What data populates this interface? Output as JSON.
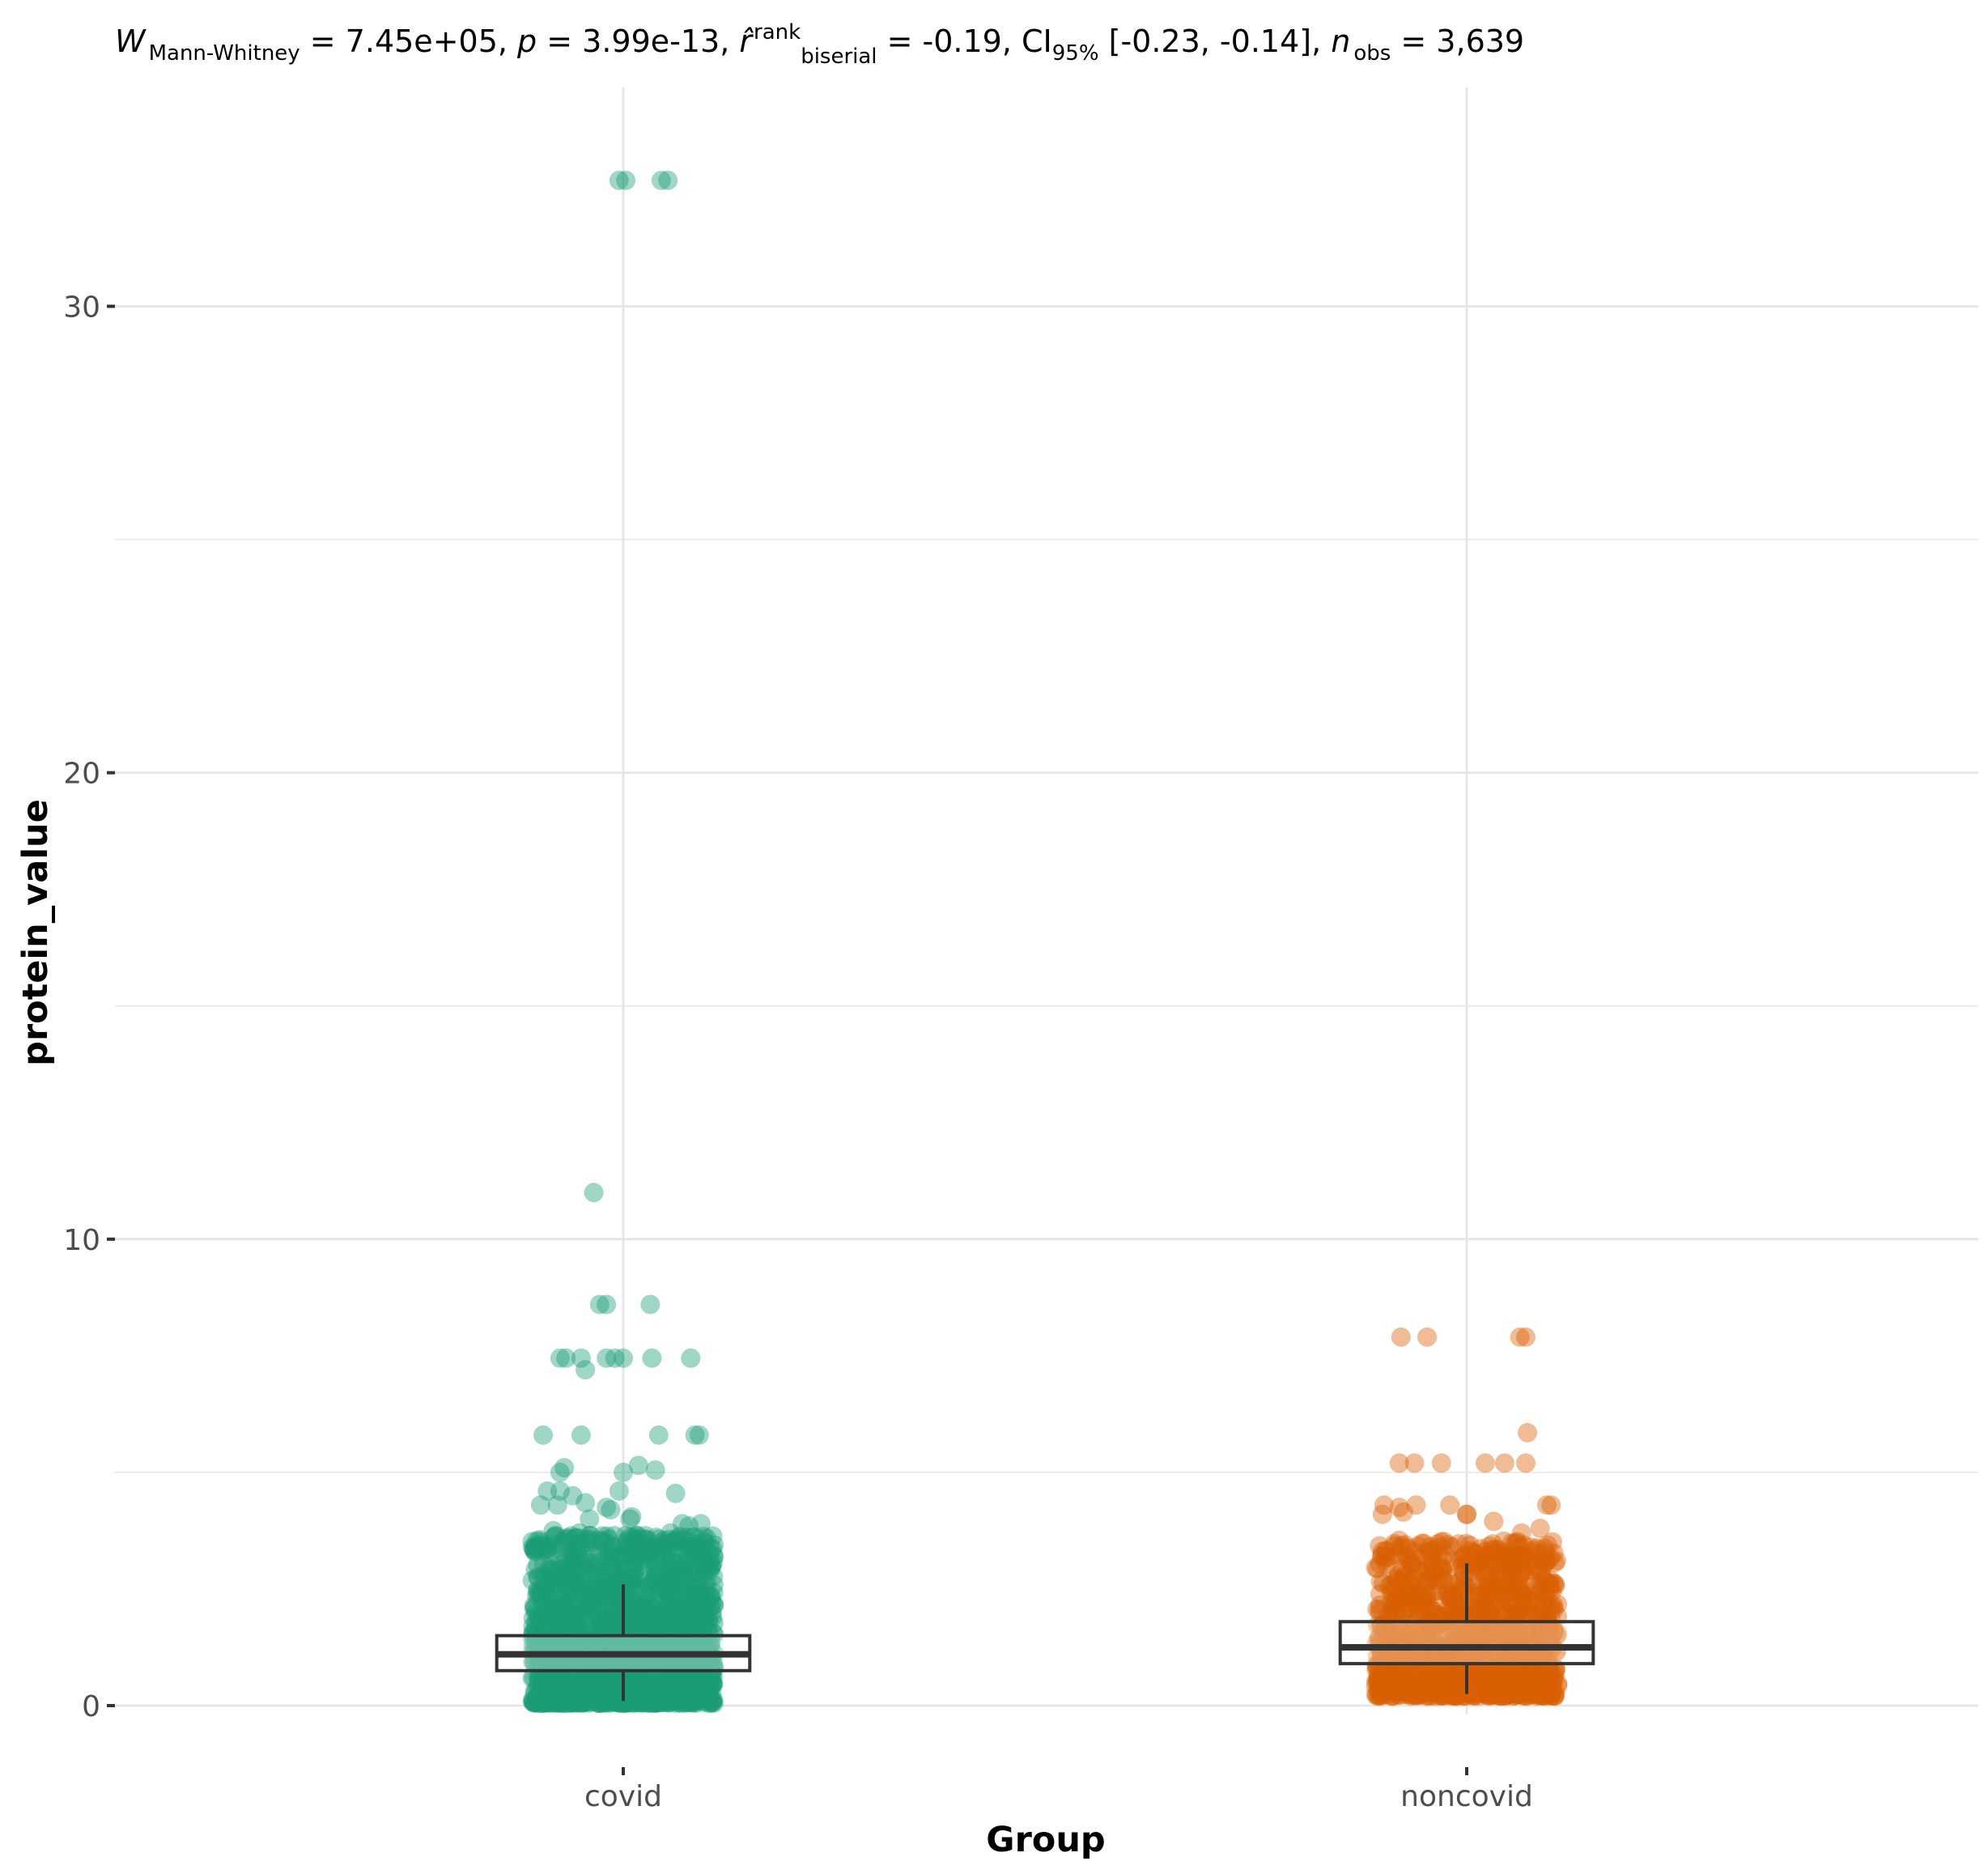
{
  "chart_data": {
    "type": "scatter",
    "subtitle": {
      "w_sym": "W",
      "w_sub": "Mann-Whitney",
      "w_val": " = 7.45e+05, ",
      "p_sym": "p",
      "p_val": " = 3.99e-13, ",
      "r_sym": "r̂",
      "r_sup": "rank",
      "r_sub": "biserial",
      "r_val": " = -0.19, CI",
      "ci_sub": "95%",
      "ci_val": " [-0.23, -0.14], ",
      "n_sym": "n",
      "n_sub": "obs",
      "n_val": " = 3,639"
    },
    "xlabel": "Group",
    "ylabel": "protein_value",
    "ylim": [
      -1.2,
      34.8
    ],
    "yticks": [
      0,
      10,
      20,
      30
    ],
    "categories": [
      "covid",
      "noncovid"
    ],
    "grid": true,
    "legend": "none",
    "groups": [
      {
        "category": "covid",
        "color": "#1b9e77",
        "box": {
          "lower_whisker": 0.1,
          "q1": 0.75,
          "median": 1.1,
          "q3": 1.5,
          "upper_whisker": 2.6
        },
        "outliers": [
          {
            "dx": -0.005,
            "y": 32.7
          },
          {
            "dx": 0.003,
            "y": 32.7
          },
          {
            "dx": 0.045,
            "y": 32.7
          },
          {
            "dx": 0.053,
            "y": 32.7
          },
          {
            "dx": -0.035,
            "y": 11.0
          },
          {
            "dx": -0.028,
            "y": 8.6
          },
          {
            "dx": -0.02,
            "y": 8.6
          },
          {
            "dx": 0.032,
            "y": 8.6
          },
          {
            "dx": -0.075,
            "y": 7.45
          },
          {
            "dx": -0.068,
            "y": 7.45
          },
          {
            "dx": -0.05,
            "y": 7.45
          },
          {
            "dx": -0.02,
            "y": 7.45
          },
          {
            "dx": -0.01,
            "y": 7.45
          },
          {
            "dx": 0.0,
            "y": 7.45
          },
          {
            "dx": 0.034,
            "y": 7.45
          },
          {
            "dx": 0.08,
            "y": 7.45
          },
          {
            "dx": -0.045,
            "y": 7.2
          },
          {
            "dx": -0.095,
            "y": 5.8
          },
          {
            "dx": -0.05,
            "y": 5.8
          },
          {
            "dx": 0.042,
            "y": 5.8
          },
          {
            "dx": 0.085,
            "y": 5.8
          },
          {
            "dx": 0.09,
            "y": 5.8
          },
          {
            "dx": -0.07,
            "y": 5.1
          },
          {
            "dx": -0.075,
            "y": 5.0
          },
          {
            "dx": 0.0,
            "y": 5.0
          },
          {
            "dx": 0.018,
            "y": 5.15
          },
          {
            "dx": 0.038,
            "y": 5.05
          },
          {
            "dx": -0.09,
            "y": 4.6
          },
          {
            "dx": -0.075,
            "y": 4.6
          },
          {
            "dx": -0.06,
            "y": 4.5
          },
          {
            "dx": -0.005,
            "y": 4.6
          },
          {
            "dx": 0.062,
            "y": 4.55
          },
          {
            "dx": -0.098,
            "y": 4.3
          },
          {
            "dx": -0.078,
            "y": 4.3
          },
          {
            "dx": -0.045,
            "y": 4.35
          },
          {
            "dx": -0.02,
            "y": 4.25
          },
          {
            "dx": -0.015,
            "y": 4.2
          },
          {
            "dx": -0.04,
            "y": 4.0
          },
          {
            "dx": 0.008,
            "y": 4.0
          },
          {
            "dx": 0.01,
            "y": 4.05
          },
          {
            "dx": 0.07,
            "y": 3.9
          },
          {
            "dx": 0.092,
            "y": 3.9
          },
          {
            "dx": 0.078,
            "y": 3.85
          },
          {
            "dx": -0.083,
            "y": 3.75
          },
          {
            "dx": -0.052,
            "y": 3.7
          },
          {
            "dx": 0.056,
            "y": 3.7
          },
          {
            "dx": 0.086,
            "y": 3.4
          },
          {
            "dx": 0.084,
            "y": 3.3
          }
        ],
        "cloud": {
          "n": 1800,
          "ymin": 0.05,
          "ymax": 3.65,
          "half_width": 0.108,
          "seed": 11
        }
      },
      {
        "category": "noncovid",
        "color": "#d95f02",
        "box": {
          "lower_whisker": 0.25,
          "q1": 0.9,
          "median": 1.25,
          "q3": 1.8,
          "upper_whisker": 3.05
        },
        "outliers": [
          {
            "dx": -0.078,
            "y": 7.9
          },
          {
            "dx": -0.047,
            "y": 7.9
          },
          {
            "dx": 0.063,
            "y": 7.9
          },
          {
            "dx": 0.07,
            "y": 7.9
          },
          {
            "dx": 0.072,
            "y": 5.85
          },
          {
            "dx": -0.08,
            "y": 5.2
          },
          {
            "dx": -0.062,
            "y": 5.2
          },
          {
            "dx": -0.03,
            "y": 5.2
          },
          {
            "dx": 0.022,
            "y": 5.2
          },
          {
            "dx": 0.045,
            "y": 5.2
          },
          {
            "dx": 0.07,
            "y": 5.2
          },
          {
            "dx": -0.098,
            "y": 4.3
          },
          {
            "dx": -0.08,
            "y": 4.25
          },
          {
            "dx": -0.06,
            "y": 4.3
          },
          {
            "dx": -0.02,
            "y": 4.3
          },
          {
            "dx": 0.0,
            "y": 4.1
          },
          {
            "dx": 0.095,
            "y": 4.3
          },
          {
            "dx": 0.1,
            "y": 4.3
          },
          {
            "dx": -0.1,
            "y": 4.1
          },
          {
            "dx": -0.075,
            "y": 4.15
          },
          {
            "dx": 0.0,
            "y": 4.1
          },
          {
            "dx": 0.032,
            "y": 3.95
          },
          {
            "dx": 0.087,
            "y": 3.8
          },
          {
            "dx": 0.065,
            "y": 3.7
          }
        ],
        "cloud": {
          "n": 1250,
          "ymin": 0.2,
          "ymax": 3.55,
          "half_width": 0.108,
          "seed": 29
        }
      }
    ]
  }
}
